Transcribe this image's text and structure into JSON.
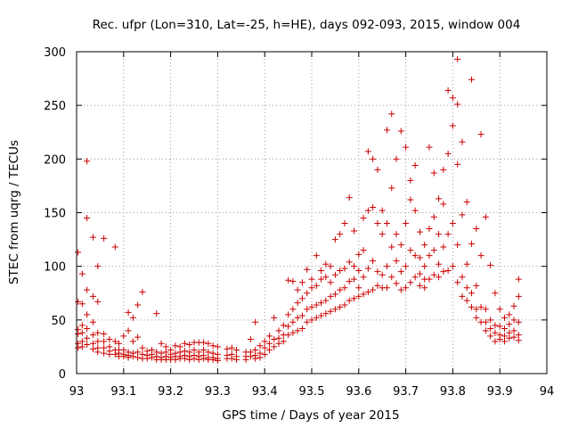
{
  "chart_data": {
    "type": "scatter",
    "title": "Rec. ufpr (Lon=310, Lat=-25, h=HE), days 092-093, 2015, window 004",
    "xlabel": "GPS time / Days of year 2015",
    "ylabel": "STEC from uqrg / TECUs",
    "xlim": [
      93,
      94
    ],
    "ylim": [
      0,
      300
    ],
    "xticks": [
      "93",
      "93.1",
      "93.2",
      "93.3",
      "93.4",
      "93.5",
      "93.6",
      "93.7",
      "93.8",
      "93.9",
      "94"
    ],
    "yticks": [
      "0",
      "50",
      "100",
      "150",
      "200",
      "250",
      "300"
    ],
    "grid": true,
    "marker": "plus",
    "color": "#cc0000",
    "points": [
      [
        93.003,
        113
      ],
      [
        93.003,
        67
      ],
      [
        93.003,
        41
      ],
      [
        93.003,
        37
      ],
      [
        93.003,
        28
      ],
      [
        93.003,
        24
      ],
      [
        93.012,
        93
      ],
      [
        93.012,
        65
      ],
      [
        93.012,
        45
      ],
      [
        93.012,
        38
      ],
      [
        93.012,
        30
      ],
      [
        93.012,
        25
      ],
      [
        93.022,
        198
      ],
      [
        93.022,
        145
      ],
      [
        93.022,
        78
      ],
      [
        93.022,
        55
      ],
      [
        93.022,
        42
      ],
      [
        93.022,
        33
      ],
      [
        93.022,
        27
      ],
      [
        93.035,
        127
      ],
      [
        93.035,
        72
      ],
      [
        93.035,
        48
      ],
      [
        93.035,
        36
      ],
      [
        93.035,
        28
      ],
      [
        93.035,
        23
      ],
      [
        93.045,
        100
      ],
      [
        93.045,
        67
      ],
      [
        93.045,
        38
      ],
      [
        93.045,
        30
      ],
      [
        93.045,
        24
      ],
      [
        93.045,
        20
      ],
      [
        93.058,
        126
      ],
      [
        93.058,
        37
      ],
      [
        93.058,
        30
      ],
      [
        93.058,
        24
      ],
      [
        93.058,
        19
      ],
      [
        93.07,
        32
      ],
      [
        93.07,
        25
      ],
      [
        93.07,
        21
      ],
      [
        93.07,
        18
      ],
      [
        93.082,
        118
      ],
      [
        93.082,
        30
      ],
      [
        93.082,
        22
      ],
      [
        93.082,
        18
      ],
      [
        93.09,
        28
      ],
      [
        93.09,
        22
      ],
      [
        93.09,
        19
      ],
      [
        93.09,
        16
      ],
      [
        93.1,
        35
      ],
      [
        93.1,
        22
      ],
      [
        93.1,
        18
      ],
      [
        93.1,
        16
      ],
      [
        93.11,
        57
      ],
      [
        93.11,
        40
      ],
      [
        93.11,
        20
      ],
      [
        93.11,
        17
      ],
      [
        93.11,
        15
      ],
      [
        93.12,
        52
      ],
      [
        93.12,
        30
      ],
      [
        93.12,
        19
      ],
      [
        93.12,
        16
      ],
      [
        93.13,
        64
      ],
      [
        93.13,
        34
      ],
      [
        93.13,
        20
      ],
      [
        93.13,
        15
      ],
      [
        93.14,
        76
      ],
      [
        93.14,
        24
      ],
      [
        93.14,
        18
      ],
      [
        93.14,
        14
      ],
      [
        93.15,
        21
      ],
      [
        93.15,
        17
      ],
      [
        93.15,
        14
      ],
      [
        93.16,
        22
      ],
      [
        93.16,
        18
      ],
      [
        93.16,
        15
      ],
      [
        93.17,
        56
      ],
      [
        93.17,
        20
      ],
      [
        93.17,
        16
      ],
      [
        93.17,
        13
      ],
      [
        93.18,
        28
      ],
      [
        93.18,
        19
      ],
      [
        93.18,
        15
      ],
      [
        93.18,
        13
      ],
      [
        93.19,
        25
      ],
      [
        93.19,
        20
      ],
      [
        93.19,
        16
      ],
      [
        93.19,
        13
      ],
      [
        93.2,
        22
      ],
      [
        93.2,
        18
      ],
      [
        93.2,
        15
      ],
      [
        93.2,
        13
      ],
      [
        93.21,
        26
      ],
      [
        93.21,
        19
      ],
      [
        93.21,
        16
      ],
      [
        93.21,
        13
      ],
      [
        93.22,
        25
      ],
      [
        93.22,
        20
      ],
      [
        93.22,
        16
      ],
      [
        93.22,
        14
      ],
      [
        93.23,
        28
      ],
      [
        93.23,
        21
      ],
      [
        93.23,
        17
      ],
      [
        93.23,
        14
      ],
      [
        93.24,
        27
      ],
      [
        93.24,
        20
      ],
      [
        93.24,
        16
      ],
      [
        93.24,
        13
      ],
      [
        93.25,
        29
      ],
      [
        93.25,
        22
      ],
      [
        93.25,
        17
      ],
      [
        93.25,
        14
      ],
      [
        93.26,
        29
      ],
      [
        93.26,
        20
      ],
      [
        93.26,
        16
      ],
      [
        93.26,
        13
      ],
      [
        93.27,
        29
      ],
      [
        93.27,
        22
      ],
      [
        93.27,
        17
      ],
      [
        93.27,
        14
      ],
      [
        93.28,
        28
      ],
      [
        93.28,
        20
      ],
      [
        93.28,
        15
      ],
      [
        93.28,
        13
      ],
      [
        93.29,
        26
      ],
      [
        93.29,
        19
      ],
      [
        93.29,
        15
      ],
      [
        93.29,
        13
      ],
      [
        93.3,
        25
      ],
      [
        93.3,
        18
      ],
      [
        93.3,
        14
      ],
      [
        93.3,
        12
      ],
      [
        93.32,
        23
      ],
      [
        93.32,
        17
      ],
      [
        93.32,
        14
      ],
      [
        93.33,
        24
      ],
      [
        93.33,
        18
      ],
      [
        93.33,
        14
      ],
      [
        93.34,
        22
      ],
      [
        93.34,
        16
      ],
      [
        93.34,
        13
      ],
      [
        93.36,
        20
      ],
      [
        93.36,
        16
      ],
      [
        93.36,
        13
      ],
      [
        93.37,
        32
      ],
      [
        93.37,
        20
      ],
      [
        93.37,
        16
      ],
      [
        93.38,
        48
      ],
      [
        93.38,
        22
      ],
      [
        93.38,
        17
      ],
      [
        93.38,
        14
      ],
      [
        93.39,
        26
      ],
      [
        93.39,
        19
      ],
      [
        93.39,
        15
      ],
      [
        93.4,
        30
      ],
      [
        93.4,
        24
      ],
      [
        93.4,
        18
      ],
      [
        93.41,
        35
      ],
      [
        93.41,
        28
      ],
      [
        93.41,
        22
      ],
      [
        93.42,
        52
      ],
      [
        93.42,
        32
      ],
      [
        93.42,
        25
      ],
      [
        93.43,
        40
      ],
      [
        93.43,
        33
      ],
      [
        93.43,
        28
      ],
      [
        93.44,
        45
      ],
      [
        93.44,
        36
      ],
      [
        93.44,
        30
      ],
      [
        93.45,
        87
      ],
      [
        93.45,
        55
      ],
      [
        93.45,
        44
      ],
      [
        93.45,
        36
      ],
      [
        93.46,
        86
      ],
      [
        93.46,
        60
      ],
      [
        93.46,
        48
      ],
      [
        93.46,
        38
      ],
      [
        93.47,
        78
      ],
      [
        93.47,
        66
      ],
      [
        93.47,
        52
      ],
      [
        93.47,
        40
      ],
      [
        93.48,
        85
      ],
      [
        93.48,
        70
      ],
      [
        93.48,
        54
      ],
      [
        93.48,
        42
      ],
      [
        93.49,
        97
      ],
      [
        93.49,
        75
      ],
      [
        93.49,
        60
      ],
      [
        93.49,
        48
      ],
      [
        93.5,
        88
      ],
      [
        93.5,
        80
      ],
      [
        93.5,
        62
      ],
      [
        93.5,
        50
      ],
      [
        93.51,
        110
      ],
      [
        93.51,
        82
      ],
      [
        93.51,
        64
      ],
      [
        93.51,
        52
      ],
      [
        93.52,
        96
      ],
      [
        93.52,
        88
      ],
      [
        93.52,
        66
      ],
      [
        93.52,
        54
      ],
      [
        93.53,
        102
      ],
      [
        93.53,
        90
      ],
      [
        93.53,
        68
      ],
      [
        93.53,
        56
      ],
      [
        93.54,
        100
      ],
      [
        93.54,
        85
      ],
      [
        93.54,
        72
      ],
      [
        93.54,
        58
      ],
      [
        93.55,
        125
      ],
      [
        93.55,
        92
      ],
      [
        93.55,
        74
      ],
      [
        93.55,
        60
      ],
      [
        93.56,
        130
      ],
      [
        93.56,
        96
      ],
      [
        93.56,
        78
      ],
      [
        93.56,
        62
      ],
      [
        93.57,
        140
      ],
      [
        93.57,
        98
      ],
      [
        93.57,
        80
      ],
      [
        93.57,
        64
      ],
      [
        93.58,
        164
      ],
      [
        93.58,
        104
      ],
      [
        93.58,
        86
      ],
      [
        93.58,
        68
      ],
      [
        93.59,
        133
      ],
      [
        93.59,
        100
      ],
      [
        93.59,
        88
      ],
      [
        93.59,
        70
      ],
      [
        93.6,
        111
      ],
      [
        93.6,
        96
      ],
      [
        93.6,
        80
      ],
      [
        93.6,
        72
      ],
      [
        93.61,
        145
      ],
      [
        93.61,
        115
      ],
      [
        93.61,
        90
      ],
      [
        93.61,
        74
      ],
      [
        93.62,
        207
      ],
      [
        93.62,
        152
      ],
      [
        93.62,
        98
      ],
      [
        93.62,
        76
      ],
      [
        93.63,
        200
      ],
      [
        93.63,
        155
      ],
      [
        93.63,
        105
      ],
      [
        93.63,
        78
      ],
      [
        93.64,
        190
      ],
      [
        93.64,
        140
      ],
      [
        93.64,
        95
      ],
      [
        93.64,
        82
      ],
      [
        93.65,
        152
      ],
      [
        93.65,
        130
      ],
      [
        93.65,
        92
      ],
      [
        93.65,
        80
      ],
      [
        93.66,
        227
      ],
      [
        93.66,
        140
      ],
      [
        93.66,
        100
      ],
      [
        93.66,
        80
      ],
      [
        93.67,
        242
      ],
      [
        93.67,
        173
      ],
      [
        93.67,
        118
      ],
      [
        93.67,
        90
      ],
      [
        93.68,
        200
      ],
      [
        93.68,
        130
      ],
      [
        93.68,
        105
      ],
      [
        93.68,
        84
      ],
      [
        93.69,
        226
      ],
      [
        93.69,
        120
      ],
      [
        93.69,
        95
      ],
      [
        93.69,
        78
      ],
      [
        93.7,
        211
      ],
      [
        93.7,
        140
      ],
      [
        93.7,
        100
      ],
      [
        93.7,
        80
      ],
      [
        93.71,
        180
      ],
      [
        93.71,
        162
      ],
      [
        93.71,
        115
      ],
      [
        93.71,
        85
      ],
      [
        93.72,
        194
      ],
      [
        93.72,
        152
      ],
      [
        93.72,
        110
      ],
      [
        93.72,
        90
      ],
      [
        93.73,
        132
      ],
      [
        93.73,
        108
      ],
      [
        93.73,
        93
      ],
      [
        93.73,
        82
      ],
      [
        93.74,
        120
      ],
      [
        93.74,
        100
      ],
      [
        93.74,
        88
      ],
      [
        93.74,
        80
      ],
      [
        93.75,
        211
      ],
      [
        93.75,
        135
      ],
      [
        93.75,
        110
      ],
      [
        93.75,
        88
      ],
      [
        93.76,
        187
      ],
      [
        93.76,
        146
      ],
      [
        93.76,
        115
      ],
      [
        93.76,
        92
      ],
      [
        93.77,
        163
      ],
      [
        93.77,
        130
      ],
      [
        93.77,
        102
      ],
      [
        93.77,
        90
      ],
      [
        93.78,
        190
      ],
      [
        93.78,
        158
      ],
      [
        93.78,
        118
      ],
      [
        93.78,
        95
      ],
      [
        93.79,
        264
      ],
      [
        93.79,
        205
      ],
      [
        93.79,
        130
      ],
      [
        93.79,
        96
      ],
      [
        93.8,
        257
      ],
      [
        93.8,
        231
      ],
      [
        93.8,
        140
      ],
      [
        93.8,
        100
      ],
      [
        93.81,
        293
      ],
      [
        93.81,
        251
      ],
      [
        93.81,
        195
      ],
      [
        93.81,
        120
      ],
      [
        93.81,
        85
      ],
      [
        93.82,
        216
      ],
      [
        93.82,
        148
      ],
      [
        93.82,
        90
      ],
      [
        93.82,
        72
      ],
      [
        93.83,
        160
      ],
      [
        93.83,
        102
      ],
      [
        93.83,
        80
      ],
      [
        93.83,
        68
      ],
      [
        93.84,
        274
      ],
      [
        93.84,
        121
      ],
      [
        93.84,
        75
      ],
      [
        93.84,
        62
      ],
      [
        93.85,
        135
      ],
      [
        93.85,
        82
      ],
      [
        93.85,
        60
      ],
      [
        93.85,
        52
      ],
      [
        93.86,
        223
      ],
      [
        93.86,
        110
      ],
      [
        93.86,
        62
      ],
      [
        93.86,
        48
      ],
      [
        93.87,
        146
      ],
      [
        93.87,
        60
      ],
      [
        93.87,
        48
      ],
      [
        93.87,
        40
      ],
      [
        93.88,
        101
      ],
      [
        93.88,
        50
      ],
      [
        93.88,
        42
      ],
      [
        93.88,
        35
      ],
      [
        93.89,
        75
      ],
      [
        93.89,
        45
      ],
      [
        93.89,
        38
      ],
      [
        93.89,
        30
      ],
      [
        93.9,
        60
      ],
      [
        93.9,
        44
      ],
      [
        93.9,
        36
      ],
      [
        93.9,
        32
      ],
      [
        93.91,
        52
      ],
      [
        93.91,
        42
      ],
      [
        93.91,
        35
      ],
      [
        93.91,
        30
      ],
      [
        93.92,
        55
      ],
      [
        93.92,
        46
      ],
      [
        93.92,
        38
      ],
      [
        93.92,
        33
      ],
      [
        93.93,
        63
      ],
      [
        93.93,
        50
      ],
      [
        93.93,
        40
      ],
      [
        93.93,
        34
      ],
      [
        93.94,
        88
      ],
      [
        93.94,
        72
      ],
      [
        93.94,
        48
      ],
      [
        93.94,
        36
      ],
      [
        93.94,
        31
      ]
    ]
  }
}
